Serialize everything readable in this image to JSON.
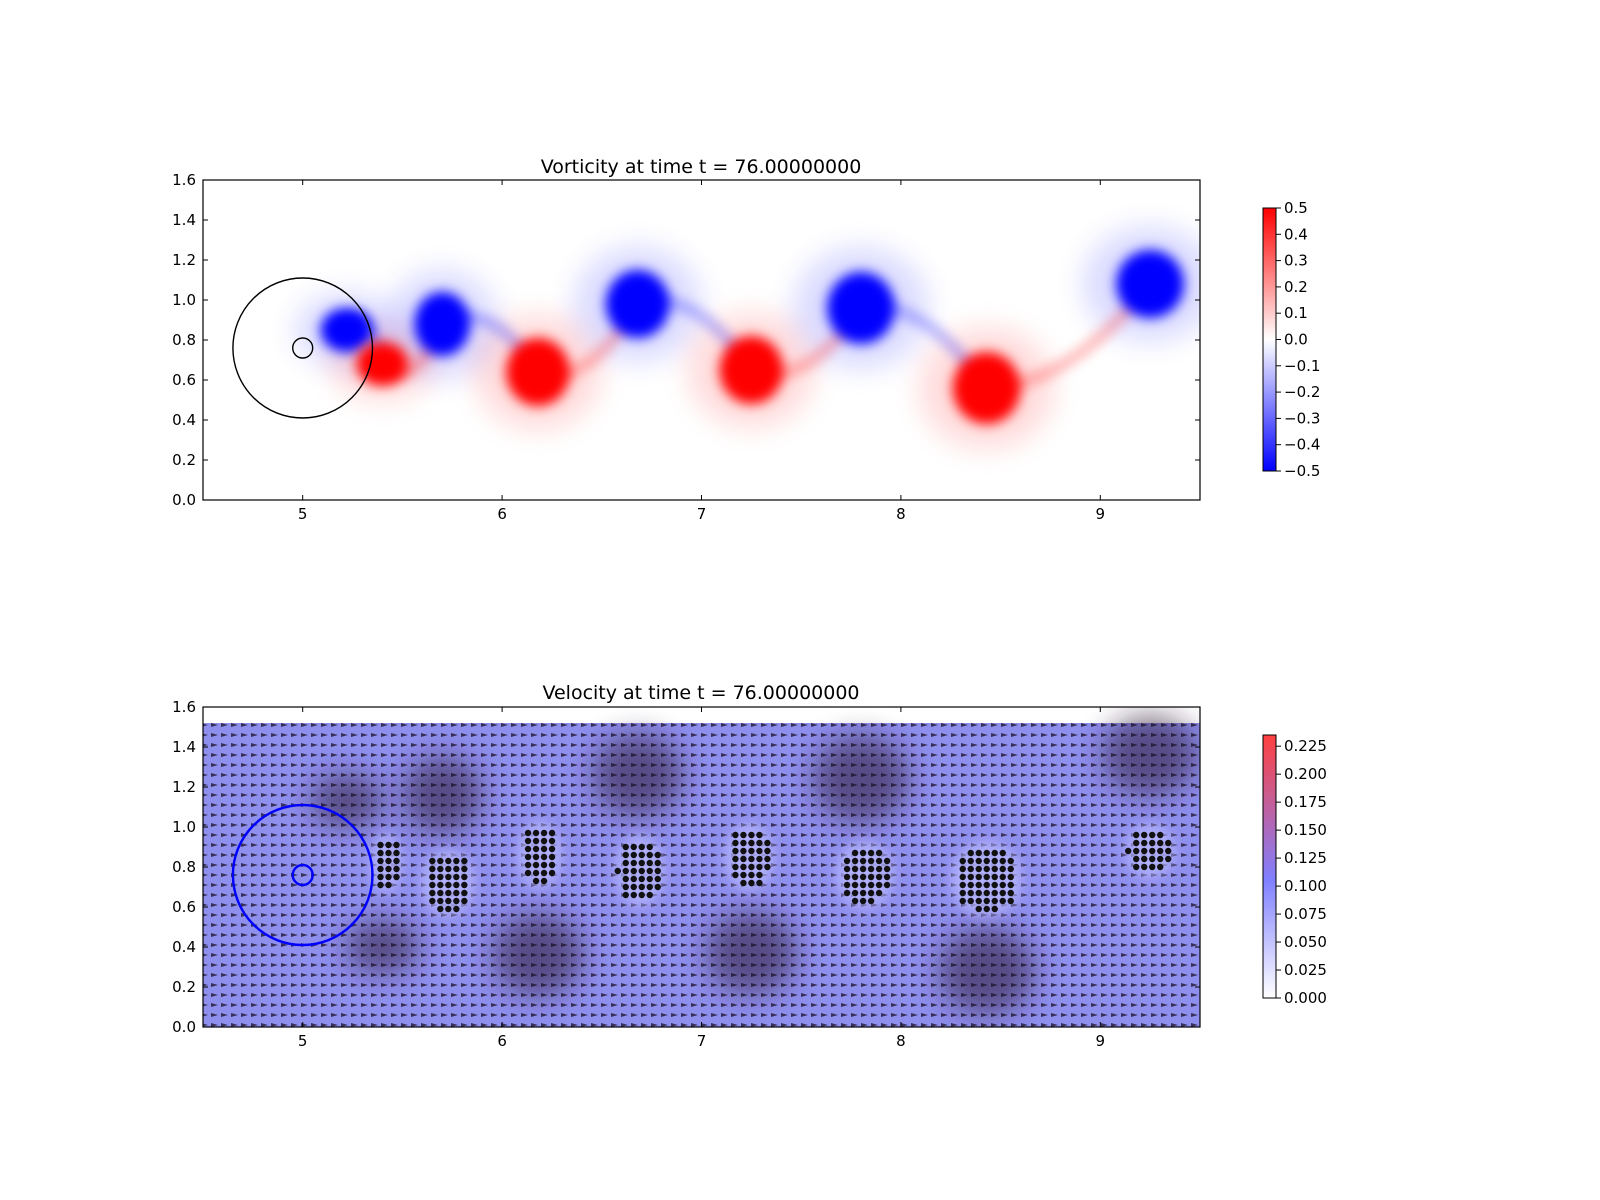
{
  "chart_data": [
    {
      "type": "heatmap",
      "title": "Vorticity at time t =    76.00000000",
      "xlabel": "",
      "ylabel": "",
      "xlim": [
        4.5,
        9.5
      ],
      "ylim": [
        0.0,
        1.6
      ],
      "x_ticks": [
        "5",
        "6",
        "7",
        "8",
        "9"
      ],
      "y_ticks": [
        "0.0",
        "0.2",
        "0.4",
        "0.6",
        "0.8",
        "1.0",
        "1.2",
        "1.4",
        "1.6"
      ],
      "colorbar": {
        "range": [
          -0.5,
          0.5
        ],
        "ticks": [
          "0.5",
          "0.4",
          "0.3",
          "0.2",
          "0.1",
          "0.0",
          "−0.1",
          "−0.2",
          "−0.3",
          "−0.4",
          "−0.5"
        ],
        "colors": {
          "low": "#0000ff",
          "mid": "#ffffff",
          "high": "#ff0000"
        }
      },
      "vortices": [
        {
          "x": 5.22,
          "y": 0.85,
          "sign": -1,
          "rx": 0.13,
          "ry": 0.11
        },
        {
          "x": 5.4,
          "y": 0.68,
          "sign": 1,
          "rx": 0.13,
          "ry": 0.11
        },
        {
          "x": 5.7,
          "y": 0.88,
          "sign": -1,
          "rx": 0.14,
          "ry": 0.16
        },
        {
          "x": 6.18,
          "y": 0.64,
          "sign": 1,
          "rx": 0.16,
          "ry": 0.17
        },
        {
          "x": 6.68,
          "y": 0.98,
          "sign": -1,
          "rx": 0.16,
          "ry": 0.17
        },
        {
          "x": 7.25,
          "y": 0.65,
          "sign": 1,
          "rx": 0.16,
          "ry": 0.17
        },
        {
          "x": 7.8,
          "y": 0.96,
          "sign": -1,
          "rx": 0.17,
          "ry": 0.18
        },
        {
          "x": 8.43,
          "y": 0.56,
          "sign": 1,
          "rx": 0.17,
          "ry": 0.18
        },
        {
          "x": 9.25,
          "y": 1.08,
          "sign": -1,
          "rx": 0.17,
          "ry": 0.17
        }
      ],
      "circles": [
        {
          "x": 5.0,
          "y": 0.76,
          "r": 0.35
        },
        {
          "x": 5.0,
          "y": 0.76,
          "r": 0.05
        }
      ]
    },
    {
      "type": "heatmap",
      "title": "Velocity at time t =    76.00000000",
      "xlabel": "",
      "ylabel": "",
      "xlim": [
        4.5,
        9.5
      ],
      "ylim": [
        0.0,
        1.6
      ],
      "x_ticks": [
        "5",
        "6",
        "7",
        "8",
        "9"
      ],
      "y_ticks": [
        "0.0",
        "0.2",
        "0.4",
        "0.6",
        "0.8",
        "1.0",
        "1.2",
        "1.4",
        "1.6"
      ],
      "colorbar": {
        "range": [
          0.0,
          0.235
        ],
        "ticks": [
          "0.225",
          "0.200",
          "0.175",
          "0.150",
          "0.125",
          "0.100",
          "0.075",
          "0.050",
          "0.025",
          "0.000"
        ],
        "colors": {
          "low": "#ffffff",
          "mid": "#8080ff",
          "high": "#ff4040"
        }
      },
      "field_top": 1.52,
      "dot_clusters": [
        {
          "x": 5.42,
          "y": 0.82,
          "rx": 0.07,
          "ry": 0.13
        },
        {
          "x": 5.73,
          "y": 0.72,
          "rx": 0.12,
          "ry": 0.15
        },
        {
          "x": 6.19,
          "y": 0.86,
          "rx": 0.1,
          "ry": 0.15
        },
        {
          "x": 6.69,
          "y": 0.78,
          "rx": 0.11,
          "ry": 0.16
        },
        {
          "x": 7.24,
          "y": 0.85,
          "rx": 0.11,
          "ry": 0.15
        },
        {
          "x": 7.82,
          "y": 0.76,
          "rx": 0.13,
          "ry": 0.15
        },
        {
          "x": 8.43,
          "y": 0.74,
          "rx": 0.16,
          "ry": 0.17
        },
        {
          "x": 9.25,
          "y": 0.88,
          "rx": 0.11,
          "ry": 0.12
        }
      ],
      "circles": [
        {
          "x": 5.0,
          "y": 0.76,
          "r": 0.35
        },
        {
          "x": 5.0,
          "y": 0.76,
          "r": 0.05
        }
      ],
      "circle_color": "#0000ff"
    }
  ]
}
